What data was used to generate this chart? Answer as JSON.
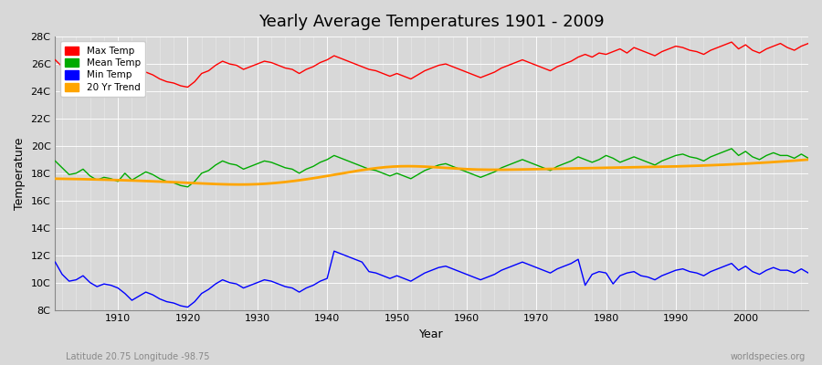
{
  "title": "Yearly Average Temperatures 1901 - 2009",
  "xlabel": "Year",
  "ylabel": "Temperature",
  "subtitle_left": "Latitude 20.75 Longitude -98.75",
  "subtitle_right": "worldspecies.org",
  "bg_color": "#d8d8d8",
  "plot_bg_color": "#d8d8d8",
  "ylim": [
    8,
    28
  ],
  "yticks": [
    8,
    10,
    12,
    14,
    16,
    18,
    20,
    22,
    24,
    26,
    28
  ],
  "ytick_labels": [
    "8C",
    "10C",
    "12C",
    "14C",
    "16C",
    "18C",
    "20C",
    "22C",
    "24C",
    "26C",
    "28C"
  ],
  "xlim": [
    1901,
    2009
  ],
  "xticks": [
    1910,
    1920,
    1930,
    1940,
    1950,
    1960,
    1970,
    1980,
    1990,
    2000
  ],
  "max_temp": [
    26.3,
    25.8,
    25.2,
    25.3,
    25.6,
    25.1,
    24.8,
    25.0,
    24.9,
    24.7,
    25.3,
    24.8,
    25.1,
    25.4,
    25.2,
    24.9,
    24.7,
    24.6,
    24.4,
    24.3,
    24.7,
    25.3,
    25.5,
    25.9,
    26.2,
    26.0,
    25.9,
    25.6,
    25.8,
    26.0,
    26.2,
    26.1,
    25.9,
    25.7,
    25.6,
    25.3,
    25.6,
    25.8,
    26.1,
    26.3,
    26.6,
    26.4,
    26.2,
    26.0,
    25.8,
    25.6,
    25.5,
    25.3,
    25.1,
    25.3,
    25.1,
    24.9,
    25.2,
    25.5,
    25.7,
    25.9,
    26.0,
    25.8,
    25.6,
    25.4,
    25.2,
    25.0,
    25.2,
    25.4,
    25.7,
    25.9,
    26.1,
    26.3,
    26.1,
    25.9,
    25.7,
    25.5,
    25.8,
    26.0,
    26.2,
    26.5,
    26.7,
    26.5,
    26.8,
    26.7,
    26.9,
    27.1,
    26.8,
    27.2,
    27.0,
    26.8,
    26.6,
    26.9,
    27.1,
    27.3,
    27.2,
    27.0,
    26.9,
    26.7,
    27.0,
    27.2,
    27.4,
    27.6,
    27.1,
    27.4,
    27.0,
    26.8,
    27.1,
    27.3,
    27.5,
    27.2,
    27.0,
    27.3,
    27.5
  ],
  "mean_temp": [
    18.9,
    18.4,
    17.9,
    18.0,
    18.3,
    17.8,
    17.5,
    17.7,
    17.6,
    17.4,
    18.0,
    17.5,
    17.8,
    18.1,
    17.9,
    17.6,
    17.4,
    17.3,
    17.1,
    17.0,
    17.4,
    18.0,
    18.2,
    18.6,
    18.9,
    18.7,
    18.6,
    18.3,
    18.5,
    18.7,
    18.9,
    18.8,
    18.6,
    18.4,
    18.3,
    18.0,
    18.3,
    18.5,
    18.8,
    19.0,
    19.3,
    19.1,
    18.9,
    18.7,
    18.5,
    18.3,
    18.2,
    18.0,
    17.8,
    18.0,
    17.8,
    17.6,
    17.9,
    18.2,
    18.4,
    18.6,
    18.7,
    18.5,
    18.3,
    18.1,
    17.9,
    17.7,
    17.9,
    18.1,
    18.4,
    18.6,
    18.8,
    19.0,
    18.8,
    18.6,
    18.4,
    18.2,
    18.5,
    18.7,
    18.9,
    19.2,
    19.0,
    18.8,
    19.0,
    19.3,
    19.1,
    18.8,
    19.0,
    19.2,
    19.0,
    18.8,
    18.6,
    18.9,
    19.1,
    19.3,
    19.4,
    19.2,
    19.1,
    18.9,
    19.2,
    19.4,
    19.6,
    19.8,
    19.3,
    19.6,
    19.2,
    19.0,
    19.3,
    19.5,
    19.3,
    19.3,
    19.1,
    19.4,
    19.1
  ],
  "min_temp": [
    11.5,
    10.6,
    10.1,
    10.2,
    10.5,
    10.0,
    9.7,
    9.9,
    9.8,
    9.6,
    9.2,
    8.7,
    9.0,
    9.3,
    9.1,
    8.8,
    8.6,
    8.5,
    8.3,
    8.2,
    8.6,
    9.2,
    9.5,
    9.9,
    10.2,
    10.0,
    9.9,
    9.6,
    9.8,
    10.0,
    10.2,
    10.1,
    9.9,
    9.7,
    9.6,
    9.3,
    9.6,
    9.8,
    10.1,
    10.3,
    12.3,
    12.1,
    11.9,
    11.7,
    11.5,
    10.8,
    10.7,
    10.5,
    10.3,
    10.5,
    10.3,
    10.1,
    10.4,
    10.7,
    10.9,
    11.1,
    11.2,
    11.0,
    10.8,
    10.6,
    10.4,
    10.2,
    10.4,
    10.6,
    10.9,
    11.1,
    11.3,
    11.5,
    11.3,
    11.1,
    10.9,
    10.7,
    11.0,
    11.2,
    11.4,
    11.7,
    9.8,
    10.6,
    10.8,
    10.7,
    9.9,
    10.5,
    10.7,
    10.8,
    10.5,
    10.4,
    10.2,
    10.5,
    10.7,
    10.9,
    11.0,
    10.8,
    10.7,
    10.5,
    10.8,
    11.0,
    11.2,
    11.4,
    10.9,
    11.2,
    10.8,
    10.6,
    10.9,
    11.1,
    10.9,
    10.9,
    10.7,
    11.0,
    10.7
  ],
  "trend_x": [
    1901,
    1910,
    1920,
    1930,
    1940,
    1950,
    1960,
    1970,
    1980,
    1990,
    2000,
    2009
  ],
  "trend_y": [
    17.6,
    17.5,
    17.3,
    17.2,
    17.8,
    18.5,
    18.3,
    18.3,
    18.4,
    18.5,
    18.7,
    19.0
  ],
  "line_colors": {
    "max": "#ff0000",
    "mean": "#00aa00",
    "min": "#0000ff",
    "trend": "#ffa500"
  },
  "line_widths": {
    "max": 1.0,
    "mean": 1.0,
    "min": 1.0,
    "trend": 2.0
  },
  "legend_labels": [
    "Max Temp",
    "Mean Temp",
    "Min Temp",
    "20 Yr Trend"
  ],
  "grid_color": "#ffffff",
  "grid_alpha": 0.9
}
